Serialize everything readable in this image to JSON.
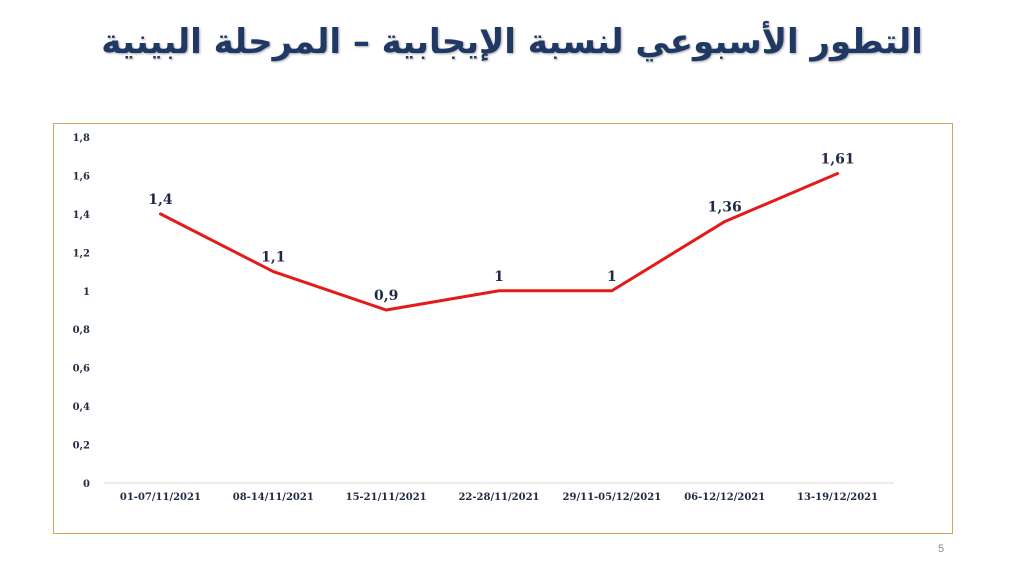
{
  "slide": {
    "title": "التطور الأسبوعي لنسبة الإيجابية – المرحلة البينية",
    "page_number": "5"
  },
  "colors": {
    "title": "#1f3864",
    "line": "#e31b1b",
    "frame_border": "#d9a35f",
    "text": "#1f2a44"
  },
  "chart_data": {
    "type": "line",
    "categories": [
      "01-07/11/2021",
      "08-14/11/2021",
      "15-21/11/2021",
      "22-28/11/2021",
      "29/11-05/12/2021",
      "06-12/12/2021",
      "13-19/12/2021"
    ],
    "values": [
      1.4,
      1.1,
      0.9,
      1,
      1,
      1.36,
      1.61
    ],
    "data_labels": [
      "1,4",
      "1,1",
      "0,9",
      "1",
      "1",
      "1,36",
      "1,61"
    ],
    "y_ticks": [
      "0",
      "0,2",
      "0,4",
      "0,6",
      "0,8",
      "1",
      "1,2",
      "1,4",
      "1,6",
      "1,8"
    ],
    "ylim": [
      0,
      1.8
    ],
    "grid": false,
    "legend": "none"
  }
}
